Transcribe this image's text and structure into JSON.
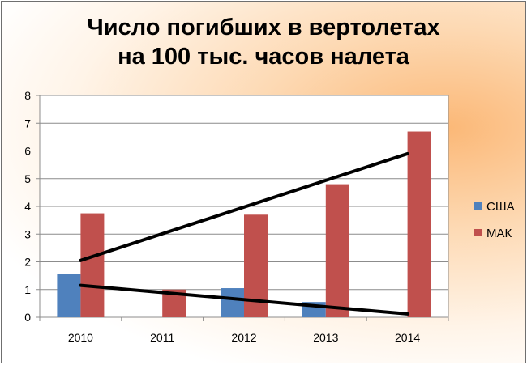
{
  "chart_data": {
    "type": "bar",
    "title_lines": [
      "Число погибших в вертолетах",
      "на 100 тыс. часов налета"
    ],
    "categories": [
      "2010",
      "2011",
      "2012",
      "2013",
      "2014"
    ],
    "series": [
      {
        "name": "США",
        "values": [
          1.55,
          0,
          1.05,
          0.55,
          0
        ],
        "color": "#4f81bd"
      },
      {
        "name": "МАК",
        "values": [
          3.75,
          1.0,
          3.7,
          4.8,
          6.7
        ],
        "color": "#c0504d"
      }
    ],
    "ylim": [
      0,
      8
    ],
    "yticks": [
      "0",
      "1",
      "2",
      "3",
      "4",
      "5",
      "6",
      "7",
      "8"
    ],
    "grid": true,
    "legend_position": "right",
    "trend_lines": [
      {
        "series": "МАК",
        "from": {
          "x": "2010",
          "y": 2.05
        },
        "to": {
          "x": "2014",
          "y": 5.9
        },
        "color": "#000000"
      },
      {
        "series": "США",
        "from": {
          "x": "2010",
          "y": 1.15
        },
        "to": {
          "x": "2014",
          "y": 0.12
        },
        "color": "#000000"
      }
    ]
  }
}
